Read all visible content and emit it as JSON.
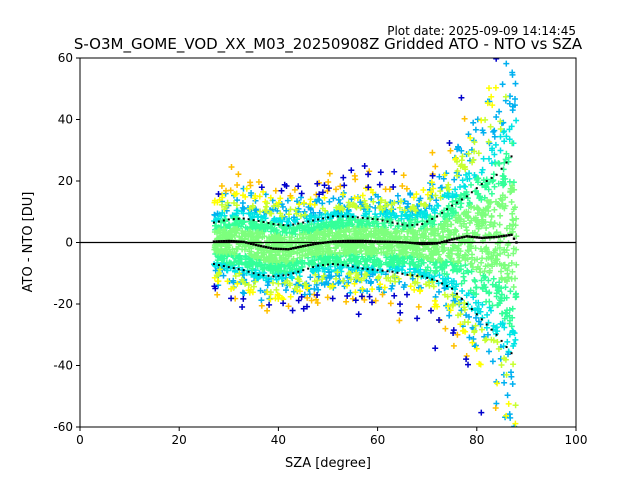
{
  "chart_data": {
    "type": "scatter",
    "plot_date": "Plot date: 2025-09-09 14:14:45",
    "title": "S-O3M_GOME_VOD_XX_M03_20250908Z Gridded ATO - NTO vs SZA",
    "xlabel": "SZA [degree]",
    "ylabel": "ATO - NTO [DU]",
    "xlim": [
      0,
      100
    ],
    "ylim": [
      -60,
      60
    ],
    "xticks": [
      0,
      20,
      40,
      60,
      80,
      100
    ],
    "yticks": [
      -60,
      -40,
      -20,
      0,
      20,
      40,
      60
    ],
    "zero_line": 0,
    "scatter_x_range": [
      27,
      88
    ],
    "point_colors": [
      "#0000cc",
      "#00b0f0",
      "#00e5e5",
      "#33ff99",
      "#7dff7d",
      "#c8ff30",
      "#ffff00",
      "#ffc000"
    ],
    "median_line": {
      "x": [
        27,
        30,
        33,
        36,
        39,
        42,
        45,
        48,
        51,
        54,
        57,
        60,
        63,
        66,
        69,
        72,
        75,
        78,
        81,
        84,
        87,
        88
      ],
      "y": [
        0.3,
        0.5,
        0.2,
        -1.0,
        -2.0,
        -2.2,
        -1.2,
        -0.3,
        0.3,
        0.5,
        0.5,
        0.3,
        0.2,
        0.0,
        -0.5,
        -0.3,
        1.0,
        2.0,
        1.5,
        1.8,
        2.5,
        0.0
      ]
    },
    "upper_band": {
      "x": [
        27,
        30,
        33,
        36,
        39,
        42,
        45,
        48,
        51,
        54,
        57,
        60,
        63,
        66,
        69,
        72,
        75,
        78,
        81,
        84,
        87
      ],
      "y": [
        6.5,
        7.5,
        7.8,
        7.0,
        6.0,
        5.5,
        6.5,
        7.5,
        8.5,
        8.5,
        8.0,
        7.5,
        6.5,
        5.5,
        6.0,
        8.5,
        12.0,
        15.0,
        19.0,
        22.0,
        28.0
      ]
    },
    "lower_band": {
      "x": [
        27,
        30,
        33,
        36,
        39,
        42,
        45,
        48,
        51,
        54,
        57,
        60,
        63,
        66,
        69,
        72,
        75,
        78,
        81,
        84,
        87
      ],
      "y": [
        -7.0,
        -8.0,
        -9.0,
        -10.5,
        -11.0,
        -10.5,
        -9.0,
        -7.5,
        -7.0,
        -7.5,
        -8.5,
        -9.0,
        -9.5,
        -10.5,
        -11.0,
        -12.5,
        -15.0,
        -20.0,
        -25.0,
        -30.0,
        -36.0
      ]
    }
  }
}
